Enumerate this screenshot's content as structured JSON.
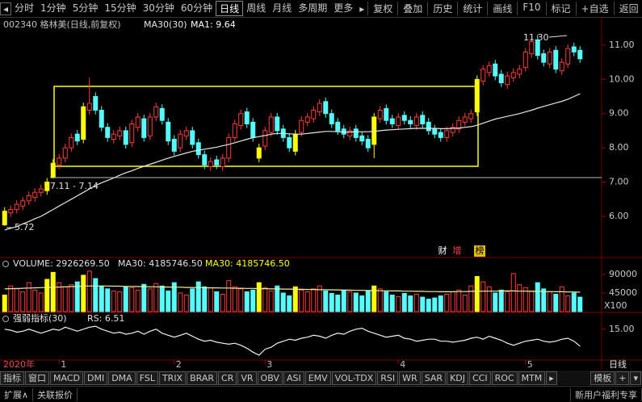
{
  "toolbar": {
    "left": [
      "分时",
      "1分钟",
      "5分钟",
      "15分钟",
      "30分钟",
      "60分钟",
      "日线",
      "周线",
      "月线",
      "多周期",
      "更多"
    ],
    "right": [
      "复权",
      "叠加",
      "历史",
      "统计",
      "画线",
      "F10",
      "标记",
      "+自选",
      "返回"
    ]
  },
  "chart_data": [
    {
      "type": "candlestick",
      "title": "002340 格林美(日线,前复权)",
      "ma1_label": "MA1: 9.64",
      "categories": [
        "2020年",
        null,
        null,
        null,
        null,
        null,
        null,
        null,
        null,
        "1",
        null,
        null,
        null,
        null,
        null,
        null,
        null,
        null,
        null,
        null,
        null,
        null,
        null,
        null,
        null,
        null,
        null,
        null,
        "2",
        null,
        null,
        null,
        null,
        null,
        null,
        null,
        null,
        null,
        null,
        null,
        null,
        null,
        null,
        "3",
        null,
        null,
        null,
        null,
        null,
        null,
        null,
        null,
        null,
        null,
        null,
        null,
        null,
        null,
        null,
        null,
        null,
        null,
        null,
        null,
        null,
        "4",
        null,
        null,
        null,
        null,
        null,
        null,
        null,
        null,
        null,
        null,
        null,
        null,
        null,
        null,
        null,
        null,
        null,
        null,
        null,
        null,
        "5",
        null,
        null,
        null,
        null,
        null,
        null,
        null,
        null,
        null
      ],
      "open": [
        5.75,
        6.1,
        6.2,
        6.3,
        6.45,
        6.55,
        6.7,
        6.75,
        7.15,
        7.5,
        7.7,
        8.0,
        8.4,
        8.25,
        9.1,
        9.5,
        9.1,
        8.6,
        8.25,
        8.35,
        8.5,
        8.15,
        8.6,
        8.85,
        8.35,
        8.9,
        9.15,
        8.75,
        8.25,
        8.0,
        8.35,
        8.5,
        8.15,
        7.8,
        7.45,
        7.65,
        7.45,
        7.7,
        8.3,
        8.65,
        9.05,
        8.75,
        7.7,
        8.05,
        8.45,
        8.9,
        8.55,
        8.3,
        7.9,
        8.45,
        8.75,
        8.85,
        9.05,
        9.35,
        9.0,
        8.75,
        8.55,
        8.35,
        8.55,
        8.35,
        8.25,
        8.1,
        8.85,
        9.15,
        8.85,
        8.65,
        8.95,
        8.8,
        8.65,
        8.95,
        8.75,
        8.55,
        8.45,
        8.3,
        8.45,
        8.55,
        8.75,
        8.85,
        9.05,
        9.95,
        10.2,
        10.45,
        10.15,
        9.85,
        10.05,
        10.15,
        10.35,
        10.75,
        11.15,
        10.75,
        10.45,
        10.85,
        10.25,
        10.45,
        10.95,
        10.85
      ],
      "high": [
        6.27,
        6.32,
        6.47,
        6.57,
        6.72,
        6.82,
        6.92,
        7.12,
        7.67,
        7.82,
        8.12,
        8.42,
        8.52,
        9.32,
        10.05,
        9.62,
        9.22,
        8.72,
        8.52,
        8.62,
        8.62,
        8.82,
        9.02,
        8.97,
        9.02,
        9.32,
        9.27,
        8.87,
        8.37,
        8.52,
        8.62,
        8.62,
        8.27,
        7.92,
        7.72,
        7.77,
        7.82,
        8.42,
        8.82,
        9.12,
        9.17,
        8.87,
        8.12,
        8.62,
        9.02,
        9.02,
        8.67,
        8.42,
        8.52,
        8.92,
        9.02,
        9.22,
        9.42,
        9.47,
        9.12,
        8.87,
        8.67,
        8.62,
        8.67,
        8.47,
        8.37,
        9.02,
        9.22,
        9.27,
        8.97,
        9.02,
        9.07,
        8.92,
        9.02,
        9.07,
        8.87,
        8.67,
        8.57,
        8.62,
        8.72,
        8.92,
        9.02,
        9.12,
        10.12,
        10.42,
        10.52,
        10.57,
        10.27,
        10.22,
        10.32,
        10.42,
        10.92,
        11.22,
        11.3,
        10.87,
        10.92,
        10.97,
        10.62,
        11.02,
        11.07,
        10.97
      ],
      "low": [
        5.72,
        5.98,
        6.08,
        6.18,
        6.33,
        6.43,
        6.58,
        6.63,
        7.11,
        7.38,
        7.58,
        7.88,
        8.08,
        8.13,
        8.98,
        8.98,
        8.48,
        8.18,
        8.13,
        8.23,
        7.98,
        8.03,
        8.48,
        8.18,
        8.23,
        8.78,
        8.68,
        8.08,
        7.78,
        7.88,
        8.23,
        7.98,
        7.68,
        7.38,
        7.33,
        7.38,
        7.33,
        7.58,
        8.18,
        8.53,
        8.58,
        8.18,
        7.58,
        7.93,
        8.33,
        8.38,
        8.18,
        7.88,
        7.78,
        8.33,
        8.63,
        8.73,
        8.93,
        8.88,
        8.58,
        8.38,
        8.28,
        8.23,
        8.18,
        8.08,
        7.88,
        7.7,
        8.73,
        8.68,
        8.58,
        8.53,
        8.68,
        8.58,
        8.53,
        8.58,
        8.38,
        8.28,
        8.18,
        8.18,
        8.33,
        8.43,
        8.63,
        8.73,
        8.93,
        9.83,
        10.08,
        9.98,
        9.78,
        9.73,
        9.93,
        10.03,
        10.23,
        10.63,
        10.58,
        10.38,
        10.33,
        10.18,
        10.13,
        10.33,
        10.68,
        10.48
      ],
      "close": [
        6.15,
        6.2,
        6.35,
        6.45,
        6.6,
        6.7,
        6.8,
        7.0,
        7.55,
        7.7,
        8.0,
        8.3,
        8.2,
        9.2,
        9.3,
        9.1,
        8.6,
        8.3,
        8.4,
        8.5,
        8.1,
        8.7,
        8.9,
        8.3,
        8.9,
        9.2,
        8.8,
        8.2,
        7.9,
        8.4,
        8.5,
        8.1,
        7.8,
        7.5,
        7.6,
        7.5,
        7.7,
        8.3,
        8.7,
        9.0,
        8.7,
        8.3,
        8.0,
        8.5,
        8.9,
        8.5,
        8.3,
        8.0,
        8.4,
        8.8,
        8.9,
        9.1,
        9.3,
        9.0,
        8.7,
        8.5,
        8.4,
        8.5,
        8.3,
        8.2,
        8.0,
        8.9,
        9.1,
        8.8,
        8.7,
        8.9,
        8.8,
        8.7,
        8.9,
        8.7,
        8.5,
        8.4,
        8.3,
        8.5,
        8.6,
        8.8,
        8.9,
        9.0,
        10.0,
        10.3,
        10.4,
        10.1,
        9.9,
        10.1,
        10.2,
        10.3,
        10.8,
        11.1,
        10.7,
        10.5,
        10.8,
        10.3,
        10.5,
        10.9,
        10.8,
        10.6
      ],
      "series": [
        {
          "name": "MA30(30)",
          "color": "#e6e6e6",
          "values": [
            5.6,
            5.65,
            5.7,
            5.78,
            5.85,
            5.93,
            6.0,
            6.1,
            6.2,
            6.3,
            6.4,
            6.5,
            6.6,
            6.7,
            6.8,
            6.9,
            6.98,
            7.05,
            7.12,
            7.2,
            7.27,
            7.33,
            7.4,
            7.46,
            7.52,
            7.58,
            7.64,
            7.7,
            7.75,
            7.8,
            7.85,
            7.9,
            7.93,
            7.96,
            7.99,
            8.02,
            8.06,
            8.1,
            8.15,
            8.2,
            8.25,
            8.3,
            8.33,
            8.36,
            8.4,
            8.42,
            8.42,
            8.41,
            8.4,
            8.4,
            8.42,
            8.44,
            8.46,
            8.48,
            8.48,
            8.47,
            8.46,
            8.46,
            8.47,
            8.47,
            8.47,
            8.48,
            8.5,
            8.52,
            8.53,
            8.54,
            8.55,
            8.56,
            8.57,
            8.57,
            8.57,
            8.57,
            8.56,
            8.56,
            8.57,
            8.58,
            8.6,
            8.62,
            8.66,
            8.72,
            8.78,
            8.84,
            8.88,
            8.92,
            8.96,
            9.0,
            9.05,
            9.1,
            9.16,
            9.21,
            9.26,
            9.31,
            9.36,
            9.42,
            9.5,
            9.58
          ]
        }
      ],
      "up_color": "#ff3c3c",
      "down_color": "#54fcfc",
      "limit_up_color": "#ffff00",
      "limit_up": [
        0,
        7,
        8,
        13,
        42,
        48,
        61,
        78
      ],
      "ylim": [
        4.82,
        11.8
      ],
      "yticks": [
        {
          "value": 6,
          "label": "6.00"
        },
        {
          "value": 7,
          "label": "7.00"
        },
        {
          "value": 8,
          "label": "8.00"
        },
        {
          "value": 9,
          "label": "9.00"
        },
        {
          "value": 10,
          "label": "10.00"
        },
        {
          "value": 11,
          "label": "11.00"
        }
      ],
      "annotations": [
        "11.30",
        "7.11 - 7.14",
        "5.72"
      ],
      "badges": [
        "财",
        "增",
        "榜"
      ]
    },
    {
      "type": "bar",
      "title": "VOLUME: 2926269.50",
      "legend": [
        "MA30: 4185746.50",
        "MA30: 4185746.50"
      ],
      "unit": "X100",
      "values": [
        40000,
        62000,
        55000,
        48000,
        70000,
        52000,
        45000,
        78000,
        95000,
        70000,
        60000,
        65000,
        72000,
        88000,
        98000,
        80000,
        62000,
        55000,
        50000,
        48000,
        60000,
        58000,
        52000,
        66000,
        55000,
        68000,
        62000,
        50000,
        70000,
        45000,
        40000,
        55000,
        72000,
        60000,
        58000,
        48000,
        42000,
        75000,
        60000,
        55000,
        48000,
        52000,
        70000,
        58000,
        50000,
        62000,
        45000,
        38000,
        60000,
        52000,
        48000,
        55000,
        62000,
        50000,
        44000,
        40000,
        52000,
        48000,
        45000,
        38000,
        50000,
        62000,
        55000,
        48000,
        40000,
        36000,
        44000,
        38000,
        42000,
        35000,
        30000,
        33000,
        38000,
        42000,
        48000,
        52000,
        40000,
        62000,
        85000,
        72000,
        60000,
        45000,
        52000,
        48000,
        92000,
        65000,
        58000,
        50000,
        70000,
        55000,
        48000,
        42000,
        60000,
        38000,
        45000,
        35000
      ],
      "ma_values": [
        55000,
        55500,
        56000,
        56500,
        57000,
        57500,
        58000,
        58500,
        59000,
        59500,
        60000,
        60500,
        61000,
        61500,
        62000,
        62000,
        62000,
        62000,
        61500,
        61500,
        61000,
        61000,
        60500,
        60500,
        60000,
        60000,
        59500,
        59500,
        59000,
        59000,
        58500,
        58500,
        58000,
        58000,
        57500,
        57500,
        57000,
        57000,
        56500,
        56500,
        56000,
        56000,
        55500,
        55500,
        55000,
        55000,
        54500,
        54500,
        54000,
        54000,
        53500,
        53500,
        53000,
        53000,
        52500,
        52500,
        52000,
        52000,
        51500,
        51500,
        51000,
        51000,
        50500,
        50500,
        50000,
        50000,
        49500,
        49500,
        49000,
        49000,
        48500,
        48500,
        48000,
        48000,
        48000,
        48500,
        48500,
        49000,
        49000,
        49500,
        49500,
        49500,
        50000,
        50000,
        50000,
        49500,
        49500,
        49000,
        49000,
        48500,
        48500,
        48000,
        48000,
        47500,
        47500,
        47000
      ],
      "ma_color": "#f0f0a0",
      "ylim": [
        0,
        129000
      ],
      "yticks": [
        45000,
        90000
      ]
    },
    {
      "type": "line",
      "title": "强弱指标(30)",
      "legend": "RS: 6.51",
      "color": "#f0f0f0",
      "values": [
        15,
        14.5,
        13.5,
        14,
        15,
        14,
        13,
        14,
        15,
        14.5,
        16,
        15,
        14,
        15,
        16,
        16.5,
        15,
        14,
        13,
        13.5,
        12.5,
        13,
        14,
        12.5,
        14,
        15,
        13,
        12,
        11,
        12,
        13,
        11.5,
        10,
        9,
        9.5,
        8.5,
        8,
        7.5,
        8,
        7,
        5.5,
        3.5,
        2,
        5,
        6,
        8,
        9,
        10,
        9.5,
        10.5,
        11,
        12,
        11.5,
        10.5,
        12,
        13,
        12.5,
        14,
        15,
        15.5,
        14,
        13,
        12,
        11,
        11.5,
        12,
        10.5,
        10,
        9,
        9.5,
        10,
        10,
        9,
        9,
        8.5,
        9,
        9.5,
        10.5,
        11,
        10,
        11.5,
        10.5,
        9.5,
        8,
        7,
        8,
        9,
        9.5,
        10,
        9,
        8.5,
        9,
        10,
        10.5,
        9,
        6.51
      ],
      "ylim": [
        0,
        23
      ],
      "yticks": [
        {
          "value": 15,
          "label": "15.00"
        }
      ]
    }
  ],
  "period_label": "日线",
  "tabs": {
    "left": [
      "指标",
      "窗口",
      "MACD",
      "DMI",
      "DMA",
      "FSL",
      "TRIX",
      "BRAR",
      "CR",
      "VR",
      "OBV",
      "ASI",
      "EMV",
      "VOL-TDX",
      "RSI",
      "WR",
      "SAR",
      "KDJ",
      "CCI",
      "ROC",
      "MTM"
    ],
    "right": [
      "模板",
      "+"
    ]
  },
  "footer": {
    "left": [
      "扩展∧",
      "关联报价"
    ],
    "right": "新用户福利专享"
  }
}
